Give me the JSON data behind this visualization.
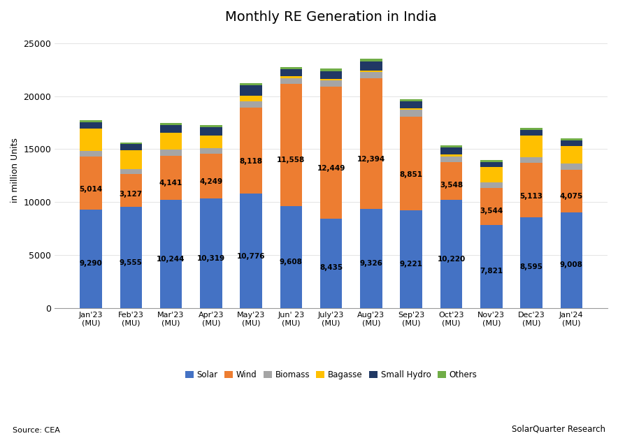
{
  "title": "Monthly RE Generation in India",
  "ylabel": "in million Units",
  "categories": [
    "Jan'23\n(MU)",
    "Feb'23\n(MU)",
    "Mar'23\n(MU)",
    "Apr'23\n(MU)",
    "May'23\n(MU)",
    "Jun' 23\n(MU)",
    "July'23\n(MU)",
    "Aug'23\n(MU)",
    "Sep'23\n(MU)",
    "Oct'23\n(MU)",
    "Nov'23\n(MU)",
    "Dec'23\n(MU)",
    "Jan'24\n(MU)"
  ],
  "solar": [
    9290,
    9555,
    10244,
    10319,
    10776,
    9608,
    8435,
    9326,
    9221,
    10220,
    7821,
    8595,
    9008
  ],
  "wind": [
    5014,
    3127,
    4141,
    4249,
    8118,
    11558,
    12449,
    12394,
    8851,
    3548,
    3544,
    5113,
    4075
  ],
  "biomass": [
    530,
    430,
    580,
    540,
    620,
    550,
    580,
    590,
    620,
    550,
    480,
    560,
    560
  ],
  "bagasse": [
    2100,
    1800,
    1600,
    1200,
    550,
    180,
    130,
    130,
    130,
    180,
    1500,
    2000,
    1650
  ],
  "small_hydro": [
    620,
    560,
    680,
    780,
    970,
    650,
    770,
    850,
    720,
    680,
    460,
    530,
    530
  ],
  "others": [
    170,
    160,
    200,
    170,
    200,
    200,
    220,
    240,
    200,
    170,
    160,
    180,
    180
  ],
  "solar_color": "#4472C4",
  "wind_color": "#ED7D31",
  "biomass_color": "#A5A5A5",
  "bagasse_color": "#FFC000",
  "small_hydro_color": "#4472C4",
  "others_color": "#70AD47",
  "background_color": "#FFFFFF",
  "ylim": [
    0,
    26000
  ],
  "yticks": [
    0,
    5000,
    10000,
    15000,
    20000,
    25000
  ],
  "source_text": "Source: CEA",
  "brand_text": "SolarQuarter Research"
}
